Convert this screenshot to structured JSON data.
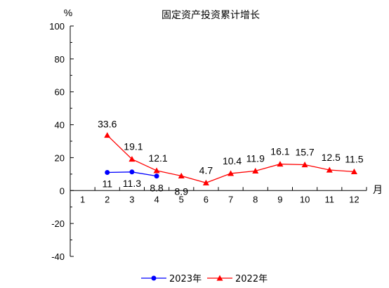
{
  "chart_data": {
    "type": "line",
    "title": "固定资产投资累计增长",
    "ylabel": "%",
    "xlabel": "月",
    "ylim": [
      -40,
      100
    ],
    "yticks": [
      -40,
      -20,
      0,
      20,
      40,
      60,
      80,
      100
    ],
    "categories": [
      "1",
      "2",
      "3",
      "4",
      "5",
      "6",
      "7",
      "8",
      "9",
      "10",
      "11",
      "12"
    ],
    "legend_position": "bottom",
    "grid": false,
    "series": [
      {
        "name": "2023年",
        "color": "#0000ff",
        "marker": "circle",
        "x": [
          "2",
          "3",
          "4"
        ],
        "values": [
          11,
          11.3,
          8.8
        ],
        "labels": [
          "11",
          "11.3",
          "8.8"
        ]
      },
      {
        "name": "2022年",
        "color": "#ff0000",
        "marker": "triangle",
        "x": [
          "2",
          "3",
          "4",
          "5",
          "6",
          "7",
          "8",
          "9",
          "10",
          "11",
          "12"
        ],
        "values": [
          33.6,
          19.1,
          12.1,
          8.9,
          4.7,
          10.4,
          11.9,
          16.1,
          15.7,
          12.5,
          11.5
        ],
        "labels": [
          "33.6",
          "19.1",
          "12.1",
          "8.9",
          "4.7",
          "10.4",
          "11.9",
          "16.1",
          "15.7",
          "12.5",
          "11.5"
        ]
      }
    ]
  }
}
